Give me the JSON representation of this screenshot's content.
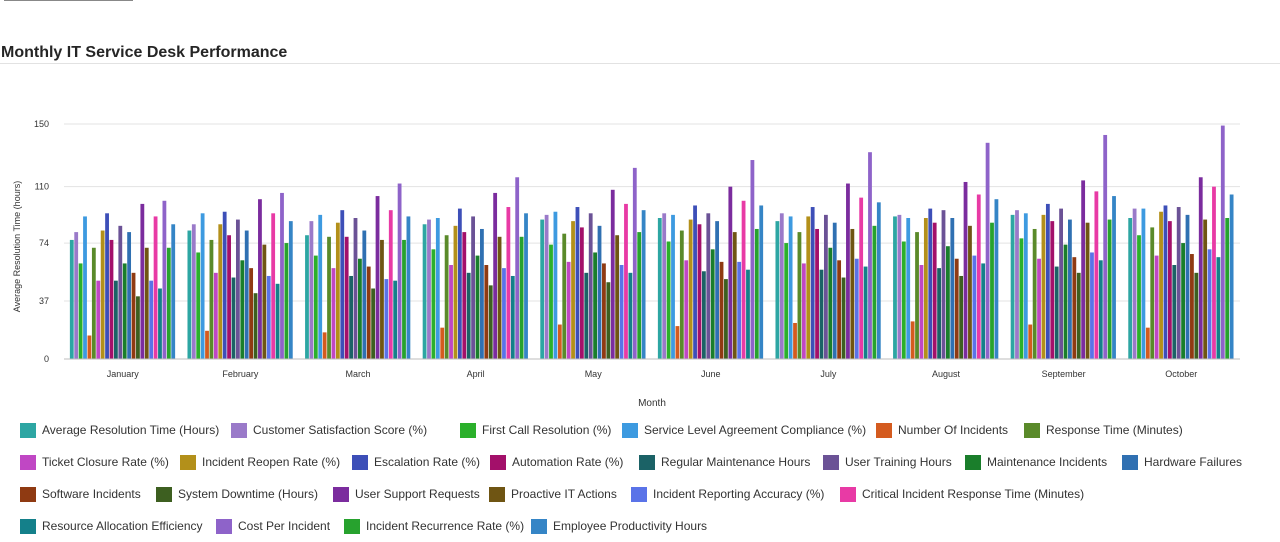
{
  "page": {
    "title": "Monthly IT Service Desk Performance"
  },
  "chart_data": {
    "type": "bar",
    "title": "Monthly IT Service Desk Performance",
    "xlabel": "Month",
    "ylabel": "Average Resolution Time (hours)",
    "ylim": [
      0,
      150
    ],
    "yticks": [
      0,
      37,
      74,
      110,
      150
    ],
    "grid": true,
    "legend_position": "bottom",
    "categories": [
      "January",
      "February",
      "March",
      "April",
      "May",
      "June",
      "July",
      "August",
      "September",
      "October"
    ],
    "series": [
      {
        "name": "Average Resolution Time (Hours)",
        "color": "#2da6a3",
        "values": [
          76,
          82,
          79,
          86,
          89,
          90,
          88,
          91,
          92,
          90
        ]
      },
      {
        "name": "Customer Satisfaction Score (%)",
        "color": "#9a7ac9",
        "values": [
          81,
          86,
          88,
          89,
          92,
          93,
          93,
          92,
          95,
          96
        ]
      },
      {
        "name": "First Call Resolution (%)",
        "color": "#2bb02b",
        "values": [
          61,
          68,
          66,
          70,
          73,
          75,
          74,
          75,
          77,
          79
        ]
      },
      {
        "name": "Service Level Agreement Compliance (%)",
        "color": "#3d9ae0",
        "values": [
          91,
          93,
          92,
          90,
          94,
          92,
          91,
          90,
          93,
          96
        ]
      },
      {
        "name": "Number Of Incidents",
        "color": "#d45b1f",
        "values": [
          15,
          18,
          17,
          20,
          22,
          21,
          23,
          24,
          22,
          20
        ]
      },
      {
        "name": "Response Time (Minutes)",
        "color": "#5a8a2a",
        "values": [
          71,
          76,
          78,
          79,
          80,
          82,
          81,
          81,
          83,
          84
        ]
      },
      {
        "name": "Ticket Closure Rate (%)",
        "color": "#c047c4",
        "values": [
          50,
          55,
          58,
          60,
          62,
          63,
          61,
          60,
          64,
          66
        ]
      },
      {
        "name": "Incident Reopen Rate (%)",
        "color": "#b3901a",
        "values": [
          82,
          86,
          87,
          85,
          88,
          89,
          91,
          90,
          92,
          94
        ]
      },
      {
        "name": "Escalation Rate (%)",
        "color": "#3d4fb8",
        "values": [
          93,
          94,
          95,
          96,
          97,
          98,
          97,
          96,
          99,
          98
        ]
      },
      {
        "name": "Automation Rate (%)",
        "color": "#a3106a",
        "values": [
          76,
          79,
          78,
          81,
          84,
          86,
          83,
          87,
          88,
          88
        ]
      },
      {
        "name": "Regular Maintenance Hours",
        "color": "#1b6266",
        "values": [
          50,
          52,
          53,
          55,
          55,
          56,
          57,
          58,
          59,
          60
        ]
      },
      {
        "name": "User Training Hours",
        "color": "#6b5296",
        "values": [
          85,
          89,
          90,
          91,
          93,
          93,
          92,
          95,
          96,
          97
        ]
      },
      {
        "name": "Maintenance Incidents",
        "color": "#1a7e2b",
        "values": [
          61,
          63,
          64,
          66,
          68,
          70,
          71,
          72,
          73,
          74
        ]
      },
      {
        "name": "Hardware Failures",
        "color": "#2f70b2",
        "values": [
          81,
          82,
          82,
          83,
          85,
          88,
          87,
          90,
          89,
          92
        ]
      },
      {
        "name": "Software Incidents",
        "color": "#8f3a12",
        "values": [
          55,
          58,
          59,
          60,
          61,
          62,
          63,
          64,
          65,
          67
        ]
      },
      {
        "name": "System Downtime (Hours)",
        "color": "#3d5f20",
        "values": [
          40,
          42,
          45,
          47,
          49,
          51,
          52,
          53,
          55,
          55
        ]
      },
      {
        "name": "User Support Requests",
        "color": "#7b2c9e",
        "values": [
          99,
          102,
          104,
          106,
          108,
          110,
          112,
          113,
          114,
          116
        ]
      },
      {
        "name": "Proactive IT Actions",
        "color": "#6f5513",
        "values": [
          71,
          73,
          76,
          78,
          79,
          81,
          83,
          85,
          87,
          89
        ]
      },
      {
        "name": "Incident Reporting Accuracy (%)",
        "color": "#5a73e8",
        "values": [
          50,
          53,
          51,
          58,
          60,
          62,
          64,
          66,
          68,
          70
        ]
      },
      {
        "name": "Critical Incident Response Time (Minutes)",
        "color": "#e83aa5",
        "values": [
          91,
          93,
          95,
          97,
          99,
          101,
          103,
          105,
          107,
          110
        ]
      },
      {
        "name": "Resource Allocation Efficiency",
        "color": "#14808a",
        "values": [
          45,
          48,
          50,
          53,
          55,
          57,
          59,
          61,
          63,
          65
        ]
      },
      {
        "name": "Cost Per Incident",
        "color": "#8e63c9",
        "values": [
          101,
          106,
          112,
          116,
          122,
          127,
          132,
          138,
          143,
          149
        ]
      },
      {
        "name": "Incident Recurrence Rate (%)",
        "color": "#27a22e",
        "values": [
          71,
          74,
          76,
          78,
          81,
          83,
          85,
          87,
          89,
          90
        ]
      },
      {
        "name": "Employee Productivity Hours",
        "color": "#3585c6",
        "values": [
          86,
          88,
          91,
          93,
          95,
          98,
          100,
          102,
          104,
          105
        ]
      }
    ]
  }
}
